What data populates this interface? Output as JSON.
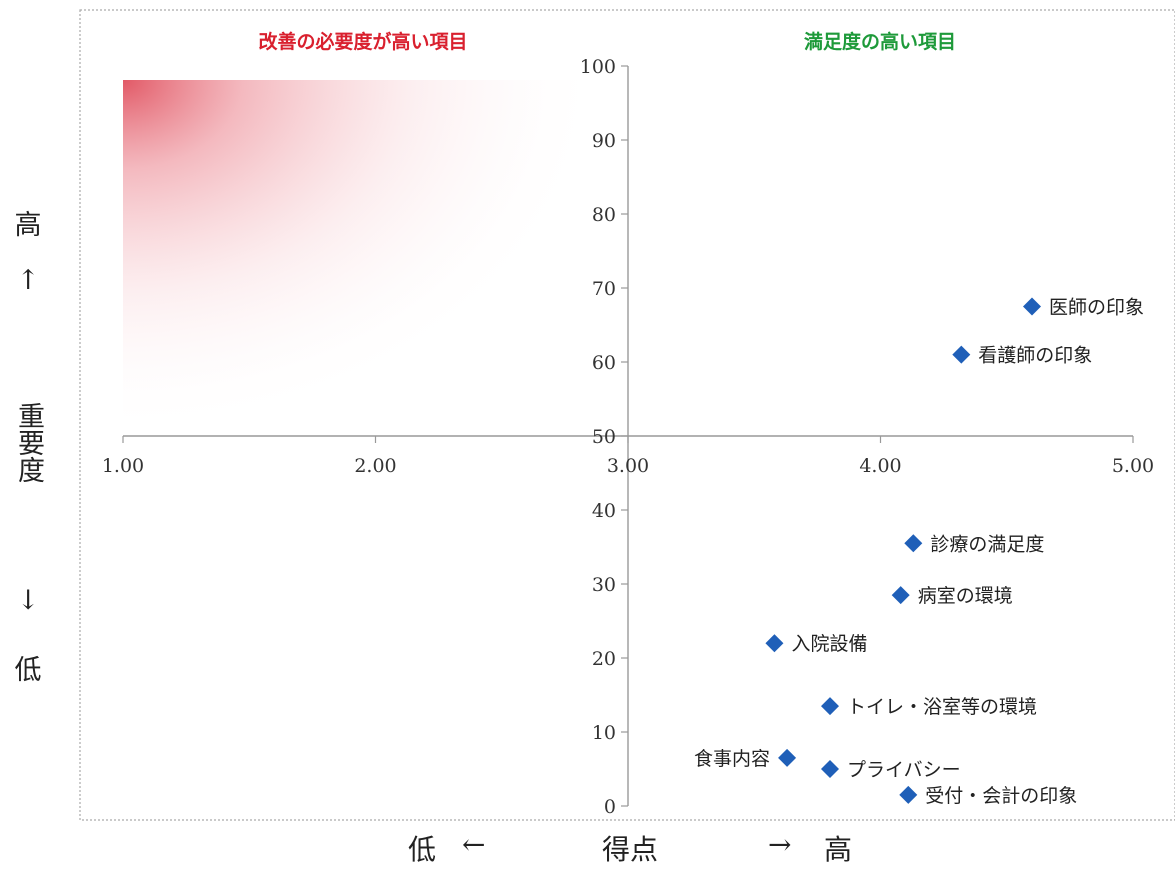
{
  "chart_data": {
    "type": "scatter",
    "quadrant_labels": {
      "top_left": "改善の必要度が高い項目",
      "top_right": "満足度の高い項目"
    },
    "x_tick_labels": [
      "1.00",
      "2.00",
      "3.00",
      "4.00",
      "5.00"
    ],
    "y_tick_labels": [
      "0",
      "10",
      "20",
      "30",
      "40",
      "50",
      "60",
      "70",
      "80",
      "90",
      "100"
    ],
    "xlim": [
      1,
      5
    ],
    "ylim": [
      0,
      100
    ],
    "x_cross_at": 50,
    "y_cross_at": 3,
    "grid": false,
    "marker_color": "#1f5fb8",
    "top_left_color": "#d9202e",
    "top_right_color": "#1e9a3a",
    "points": [
      {
        "label": "医師の印象",
        "x": 4.6,
        "y": 67.5,
        "label_side": "right"
      },
      {
        "label": "看護師の印象",
        "x": 4.32,
        "y": 61,
        "label_side": "right"
      },
      {
        "label": "診療の満足度",
        "x": 4.13,
        "y": 35.5,
        "label_side": "right"
      },
      {
        "label": "病室の環境",
        "x": 4.08,
        "y": 28.5,
        "label_side": "right"
      },
      {
        "label": "入院設備",
        "x": 3.58,
        "y": 22,
        "label_side": "right"
      },
      {
        "label": "トイレ・浴室等の環境",
        "x": 3.8,
        "y": 13.5,
        "label_side": "right"
      },
      {
        "label": "食事内容",
        "x": 3.63,
        "y": 6.5,
        "label_side": "left"
      },
      {
        "label": "プライバシー",
        "x": 3.8,
        "y": 5,
        "label_side": "right"
      },
      {
        "label": "受付・会計の印象",
        "x": 4.11,
        "y": 1.5,
        "label_side": "right"
      }
    ]
  },
  "y_axis_side": {
    "high": "高",
    "up_arrow": "↑",
    "label": "重要度",
    "down_arrow": "↓",
    "low": "低"
  },
  "x_axis_footer": {
    "low": "低",
    "left_arrow": "←",
    "label": "得点",
    "right_arrow": "→",
    "high": "高"
  }
}
